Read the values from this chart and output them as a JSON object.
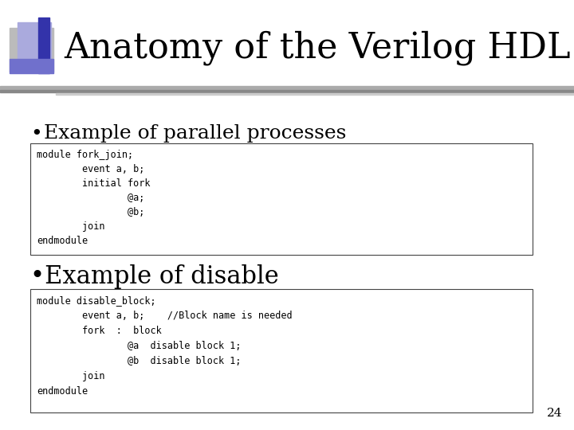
{
  "title": "Anatomy of the Verilog HDL",
  "title_fontsize": 32,
  "bg_color": "#ffffff",
  "bullet1_text": "  Example of parallel processes",
  "bullet1_fontsize": 18,
  "code_block1": [
    "module fork_join;",
    "        event a, b;",
    "        initial fork",
    "                @a;",
    "                @b;",
    "        join",
    "endmodule"
  ],
  "bullet2_text": "•Example of disable",
  "bullet2_fontsize": 22,
  "code_block2": [
    "module disable_block;",
    "        event a, b;    //Block name is needed",
    "        fork  :  block",
    "                @a  disable block 1;",
    "                @b  disable block 1;",
    "        join",
    "endmodule"
  ],
  "code_fontsize": 8.5,
  "page_number": "24",
  "sq_gray": "#999999",
  "sq_darkblue": "#3333aa",
  "sq_medblue": "#7070cc",
  "sq_lightblue": "#aaaadd",
  "sq_lightgray": "#bbbbbb",
  "line_dark": "#888888",
  "line_light": "#cccccc"
}
